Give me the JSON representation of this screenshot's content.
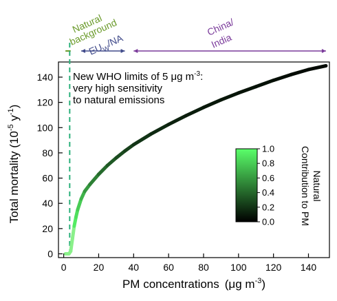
{
  "chart_data": {
    "type": "line",
    "xlabel_main": "PM concentrations",
    "xlabel_unit_pre": "(μg m",
    "xlabel_unit_sup": "-3",
    "xlabel_unit_post": ")",
    "ylabel_main": "Total mortality (10",
    "ylabel_sup1": "-5",
    "ylabel_mid": " y",
    "ylabel_sup2": "-1",
    "ylabel_post": ")",
    "xlim": [
      -3,
      152
    ],
    "ylim": [
      -3,
      152
    ],
    "x_ticks": [
      0,
      20,
      40,
      60,
      80,
      100,
      120,
      140
    ],
    "y_ticks": [
      0,
      20,
      40,
      60,
      80,
      100,
      120,
      140
    ],
    "x_tick_labels": [
      "0",
      "20",
      "40",
      "60",
      "80",
      "100",
      "120",
      "140"
    ],
    "y_tick_labels": [
      "0",
      "20",
      "40",
      "60",
      "80",
      "100",
      "120",
      "140"
    ],
    "curve": {
      "x": [
        1,
        3,
        4,
        5,
        6,
        7,
        8,
        10,
        12,
        15,
        20,
        25,
        30,
        35,
        40,
        50,
        60,
        70,
        80,
        90,
        100,
        110,
        120,
        130,
        140,
        150
      ],
      "y": [
        0,
        0,
        2,
        12,
        22,
        29,
        35,
        43.5,
        49.5,
        55,
        63,
        70,
        76,
        81.5,
        86.5,
        95,
        102.5,
        109.5,
        116,
        122,
        127.5,
        132.5,
        137.5,
        142,
        146,
        149
      ],
      "natural_contribution": [
        1,
        1,
        1,
        1,
        0.95,
        0.9,
        0.85,
        0.75,
        0.65,
        0.55,
        0.45,
        0.38,
        0.32,
        0.27,
        0.23,
        0.18,
        0.14,
        0.12,
        0.1,
        0.09,
        0.08,
        0.07,
        0.06,
        0.05,
        0.04,
        0.04
      ]
    },
    "who_limit_x": 5,
    "annotation_lines": [
      {
        "pre": "New WHO limits of 5 μg m",
        "sup": "-3",
        "post": ":"
      },
      {
        "pre": "very high sensitivity",
        "sup": "",
        "post": ""
      },
      {
        "pre": "to natural emissions",
        "sup": "",
        "post": ""
      }
    ],
    "regions": [
      {
        "name_lines": [
          "Natural",
          "background"
        ],
        "color": "#6a9a2a",
        "x_start": 1,
        "x_end": 4
      },
      {
        "name_pre": "EU",
        "name_sub": "W",
        "name_post": "/NA",
        "color": "#404a8a",
        "x_start": 10,
        "x_end": 35
      },
      {
        "name_lines": [
          "China/",
          "India"
        ],
        "color": "#7a3a9a",
        "x_start": 40,
        "x_end": 150
      }
    ],
    "colorbar": {
      "title_lines": [
        "Natural",
        "Contribution to PM"
      ],
      "range": [
        0,
        1
      ],
      "ticks": [
        0,
        0.2,
        0.4,
        0.6,
        0.8,
        1
      ],
      "tick_labels": [
        "0.0",
        "0.2",
        "0.4",
        "0.6",
        "0.8",
        "1.0"
      ],
      "colors": [
        "#000000",
        "#5aff6a"
      ]
    },
    "colors": {
      "who_line": "#2ab07a",
      "axis": "#000000"
    },
    "grid": false,
    "legend": "none"
  }
}
